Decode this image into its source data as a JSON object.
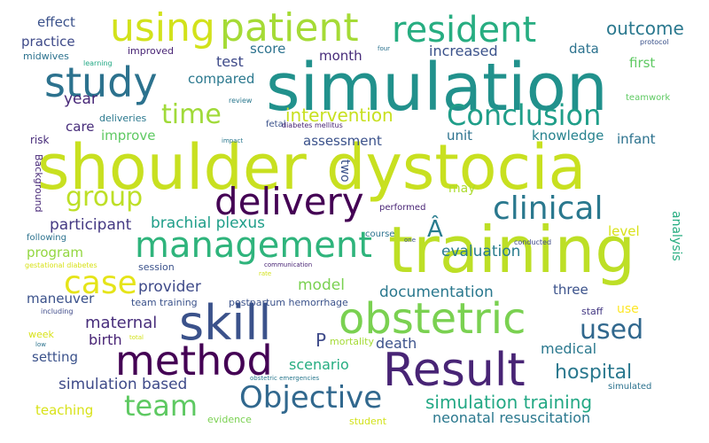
{
  "word_cloud": {
    "background": "#ffffff",
    "palette": [
      "#440154",
      "#3b528b",
      "#21918c",
      "#5ec962",
      "#c8e020",
      "#fde725"
    ],
    "words": [
      {
        "text": "shoulder dystocia",
        "color": "#c8e020"
      },
      {
        "text": "simulation",
        "color": "#21918c"
      },
      {
        "text": "training",
        "color": "#bddf26"
      },
      {
        "text": "obstetric",
        "color": "#7ad151"
      },
      {
        "text": "Result",
        "color": "#482475"
      },
      {
        "text": "skill",
        "color": "#3b528b"
      },
      {
        "text": "management",
        "color": "#2fb47c"
      },
      {
        "text": "method",
        "color": "#440154"
      },
      {
        "text": "delivery",
        "color": "#440154"
      },
      {
        "text": "study",
        "color": "#2c728e"
      },
      {
        "text": "patient",
        "color": "#a5db36"
      },
      {
        "text": "using",
        "color": "#d2e21b"
      },
      {
        "text": "resident",
        "color": "#27ad81"
      },
      {
        "text": "Objective",
        "color": "#31688e"
      },
      {
        "text": "clinical",
        "color": "#2a788e"
      },
      {
        "text": "Conclusion",
        "color": "#1f9e89"
      },
      {
        "text": "case",
        "color": "#e5e419"
      },
      {
        "text": "team",
        "color": "#5ec962"
      },
      {
        "text": "group",
        "color": "#bddf26"
      },
      {
        "text": "time",
        "color": "#a0da39"
      },
      {
        "text": "used",
        "color": "#31688e"
      },
      {
        "text": "Â",
        "color": "#287c8e"
      },
      {
        "text": "P",
        "color": "#3e4a89"
      },
      {
        "text": "outcome",
        "color": "#2a788e"
      },
      {
        "text": "intervention",
        "color": "#c8e020"
      },
      {
        "text": "hospital",
        "color": "#2a788e"
      },
      {
        "text": "simulation training",
        "color": "#22a884"
      },
      {
        "text": "brachial plexus",
        "color": "#1f9e89"
      },
      {
        "text": "documentation",
        "color": "#2a788e"
      },
      {
        "text": "maternal",
        "color": "#472d7b"
      },
      {
        "text": "neonatal resuscitation",
        "color": "#2a788e"
      },
      {
        "text": "participant",
        "color": "#443983"
      },
      {
        "text": "simulation based",
        "color": "#3e4a89"
      },
      {
        "text": "provider",
        "color": "#3e4a89"
      },
      {
        "text": "evaluation",
        "color": "#287c8e"
      },
      {
        "text": "model",
        "color": "#7ad151"
      },
      {
        "text": "year",
        "color": "#482878"
      },
      {
        "text": "test",
        "color": "#3e4a89"
      },
      {
        "text": "compared",
        "color": "#2a788e"
      },
      {
        "text": "increased",
        "color": "#3b528b"
      },
      {
        "text": "month",
        "color": "#472c7a"
      },
      {
        "text": "assessment",
        "color": "#3b528b"
      },
      {
        "text": "knowledge",
        "color": "#26828e"
      },
      {
        "text": "unit",
        "color": "#2c728e"
      },
      {
        "text": "infant",
        "color": "#2c728e"
      },
      {
        "text": "birth",
        "color": "#482475"
      },
      {
        "text": "scenario",
        "color": "#26ad81"
      },
      {
        "text": "medical",
        "color": "#2a788e"
      },
      {
        "text": "death",
        "color": "#3b528b"
      },
      {
        "text": "setting",
        "color": "#3b528b"
      },
      {
        "text": "teaching",
        "color": "#d8e219"
      },
      {
        "text": "program",
        "color": "#93d741"
      },
      {
        "text": "maneuver",
        "color": "#3b528b"
      },
      {
        "text": "three",
        "color": "#3b528b"
      },
      {
        "text": "level",
        "color": "#d8e219"
      },
      {
        "text": "practice",
        "color": "#3e4a89"
      },
      {
        "text": "effect",
        "color": "#3b528b"
      },
      {
        "text": "score",
        "color": "#2c728e"
      },
      {
        "text": "data",
        "color": "#2c728e"
      },
      {
        "text": "first",
        "color": "#5ec962"
      },
      {
        "text": "improve",
        "color": "#5ec962"
      },
      {
        "text": "care",
        "color": "#472c7a"
      },
      {
        "text": "two",
        "color": "#3b528b"
      },
      {
        "text": "may",
        "color": "#addc30"
      },
      {
        "text": "use",
        "color": "#fde725"
      },
      {
        "text": "analysis",
        "color": "#27ad81"
      },
      {
        "text": "week",
        "color": "#d8e219"
      },
      {
        "text": "improved",
        "color": "#482475"
      },
      {
        "text": "deliveries",
        "color": "#2a788e"
      },
      {
        "text": "midwives",
        "color": "#2c728e"
      },
      {
        "text": "risk",
        "color": "#472c7a"
      },
      {
        "text": "Background",
        "color": "#482878"
      },
      {
        "text": "mortality",
        "color": "#a5db36"
      },
      {
        "text": "evidence",
        "color": "#7ad151"
      },
      {
        "text": "student",
        "color": "#d2e21b"
      },
      {
        "text": "session",
        "color": "#3b528b"
      },
      {
        "text": "following",
        "color": "#2c728e"
      },
      {
        "text": "team training",
        "color": "#3b528b"
      },
      {
        "text": "postpartum hemorrhage",
        "color": "#3b528b"
      },
      {
        "text": "staff",
        "color": "#443983"
      },
      {
        "text": "simulated",
        "color": "#2c728e"
      },
      {
        "text": "course",
        "color": "#2c728e"
      },
      {
        "text": "performed",
        "color": "#482475"
      },
      {
        "text": "conducted",
        "color": "#3e4a89"
      },
      {
        "text": "teamwork",
        "color": "#5ec962"
      },
      {
        "text": "fetal",
        "color": "#3b528b"
      },
      {
        "text": "diabetes mellitus",
        "color": "#482475"
      },
      {
        "text": "review",
        "color": "#2a788e"
      },
      {
        "text": "impact",
        "color": "#2a788e"
      },
      {
        "text": "learning",
        "color": "#22a884"
      },
      {
        "text": "four",
        "color": "#2c728e"
      },
      {
        "text": "protocol",
        "color": "#3b528b"
      },
      {
        "text": "one",
        "color": "#3b528b"
      },
      {
        "text": "including",
        "color": "#3e4a89"
      },
      {
        "text": "low",
        "color": "#2c728e"
      },
      {
        "text": "total",
        "color": "#d2e21b"
      },
      {
        "text": "gestational diabetes",
        "color": "#d8e219"
      },
      {
        "text": "rate",
        "color": "#d2e21b"
      },
      {
        "text": "communication",
        "color": "#482475"
      },
      {
        "text": "obstetric emergencies",
        "color": "#2a788e"
      }
    ]
  }
}
